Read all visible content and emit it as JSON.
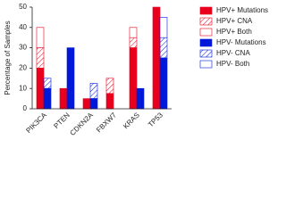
{
  "chart_data": {
    "type": "bar",
    "ylabel": "Percentage of Samples",
    "categories": [
      "PIK3CA",
      "PTEN",
      "CDKN2A",
      "FBXW7",
      "KRAS",
      "TP53"
    ],
    "ylim": [
      0,
      50
    ],
    "yticks": [
      0,
      10,
      20,
      30,
      40,
      50
    ],
    "series": [
      {
        "name": "HPV+ Mutations",
        "color": "#e8001c",
        "stack": 0,
        "style": "solid",
        "values": [
          20,
          10,
          5,
          7.5,
          30,
          50
        ]
      },
      {
        "name": "HPV+ CNA",
        "color": "#e8001c",
        "stack": 0,
        "style": "hatch",
        "values": [
          10,
          0,
          0,
          7.5,
          5,
          0
        ]
      },
      {
        "name": "HPV+ Both",
        "color": "#e8001c",
        "stack": 0,
        "style": "outline",
        "values": [
          10,
          0,
          0,
          0,
          5,
          0
        ]
      },
      {
        "name": "HPV- Mutations",
        "color": "#0018d8",
        "stack": 1,
        "style": "solid",
        "values": [
          10,
          30,
          5,
          0,
          10,
          25
        ]
      },
      {
        "name": "HPV- CNA",
        "color": "#0018d8",
        "stack": 1,
        "style": "hatch",
        "values": [
          5,
          0,
          7.5,
          0,
          0,
          10
        ]
      },
      {
        "name": "HPV- Both",
        "color": "#0018d8",
        "stack": 1,
        "style": "outline",
        "values": [
          0,
          0,
          0,
          0,
          0,
          10
        ]
      }
    ]
  }
}
